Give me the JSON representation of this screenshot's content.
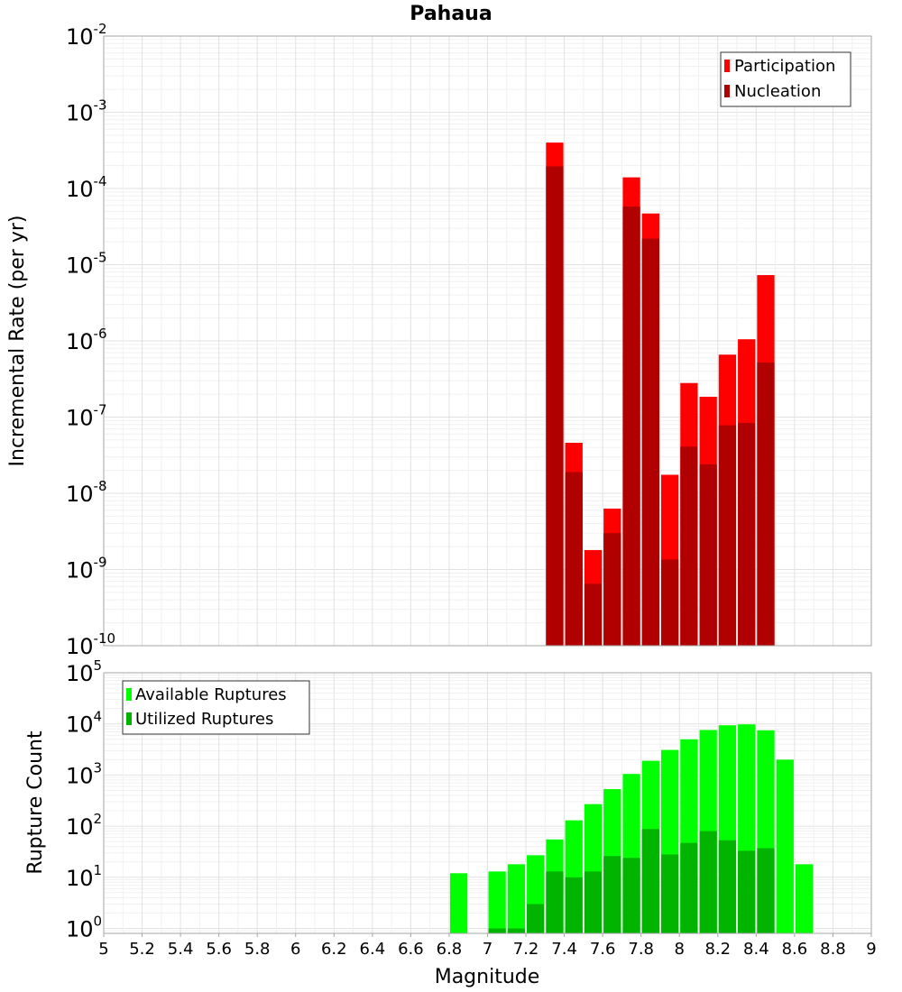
{
  "chart_data": [
    {
      "type": "bar",
      "title": "Pahaua",
      "ylabel": "Incremental Rate (per yr)",
      "xlabel": "",
      "xlim": [
        5,
        9
      ],
      "ylim": [
        1e-10,
        0.01
      ],
      "yscale": "log",
      "grid": true,
      "legend_placement": "top-right",
      "bin_width": 0.1,
      "x": [
        7.35,
        7.45,
        7.55,
        7.65,
        7.75,
        7.85,
        7.95,
        8.05,
        8.15,
        8.25,
        8.35,
        8.45
      ],
      "series": [
        {
          "name": "Participation",
          "color": "#ff0000",
          "values": [
            0.0004,
            4.6e-08,
            1.8e-09,
            6.3e-09,
            0.00014,
            4.7e-05,
            1.75e-08,
            2.8e-07,
            1.85e-07,
            6.6e-07,
            1.05e-06,
            7.3e-06
          ]
        },
        {
          "name": "Nucleation",
          "color": "#b00000",
          "values": [
            0.000195,
            1.9e-08,
            6.5e-10,
            3e-09,
            5.8e-05,
            2.2e-05,
            1.35e-09,
            4.1e-08,
            2.4e-08,
            7.8e-08,
            8.4e-08,
            5.2e-07
          ]
        }
      ]
    },
    {
      "type": "bar",
      "title": "",
      "ylabel": "Rupture Count",
      "xlabel": "Magnitude",
      "xlim": [
        5,
        9
      ],
      "ylim": [
        0.8,
        100000.0
      ],
      "yscale": "log",
      "grid": true,
      "legend_placement": "top-left",
      "bin_width": 0.1,
      "x": [
        6.85,
        7.05,
        7.15,
        7.25,
        7.35,
        7.45,
        7.55,
        7.65,
        7.75,
        7.85,
        7.95,
        8.05,
        8.15,
        8.25,
        8.35,
        8.45,
        8.55,
        8.65
      ],
      "series": [
        {
          "name": "Available Ruptures",
          "color": "#00ff00",
          "values": [
            12,
            13,
            18,
            27,
            55,
            130,
            270,
            530,
            1050,
            1900,
            3100,
            5000,
            7600,
            9400,
            9800,
            7500,
            2000,
            18
          ]
        },
        {
          "name": "Utilized Ruptures",
          "color": "#00b400",
          "values": [
            0,
            1,
            1,
            3,
            13,
            10,
            13,
            26,
            24,
            88,
            28,
            47,
            80,
            53,
            33,
            37,
            0,
            0
          ]
        }
      ]
    }
  ],
  "x_ticks": [
    "5",
    "5.2",
    "5.4",
    "5.6",
    "5.8",
    "6",
    "6.2",
    "6.4",
    "6.6",
    "6.8",
    "7",
    "7.2",
    "7.4",
    "7.6",
    "7.8",
    "8",
    "8.2",
    "8.4",
    "8.6",
    "8.8",
    "9"
  ],
  "top_y_ticks": [
    {
      "base": "10",
      "exp": "-2"
    },
    {
      "base": "10",
      "exp": "-3"
    },
    {
      "base": "10",
      "exp": "-4"
    },
    {
      "base": "10",
      "exp": "-5"
    },
    {
      "base": "10",
      "exp": "-6"
    },
    {
      "base": "10",
      "exp": "-7"
    },
    {
      "base": "10",
      "exp": "-8"
    },
    {
      "base": "10",
      "exp": "-9"
    },
    {
      "base": "10",
      "exp": "-10"
    }
  ],
  "bottom_y_ticks": [
    {
      "base": "10",
      "exp": "5"
    },
    {
      "base": "10",
      "exp": "4"
    },
    {
      "base": "10",
      "exp": "3"
    },
    {
      "base": "10",
      "exp": "2"
    },
    {
      "base": "10",
      "exp": "1"
    },
    {
      "base": "10",
      "exp": "0"
    }
  ]
}
